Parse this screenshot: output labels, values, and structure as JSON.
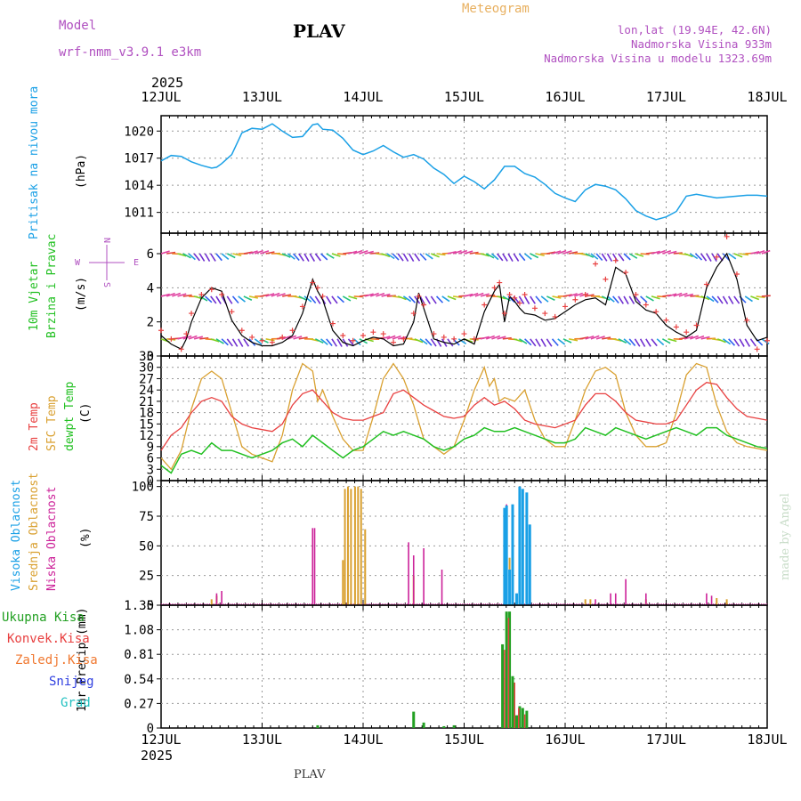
{
  "header": {
    "model_label": "Model",
    "model_name": "wrf-nmm_v3.9.1  e3km",
    "station": "PLAV",
    "product": "Meteogram",
    "lonlat": "lon,lat (19.94E, 42.6N)",
    "elevation": "Nadmorska Visina 933m",
    "elevation_model": "Nadmorska Visina u modelu 1323.69m",
    "credit": "made by Angel",
    "footer_station": "PLAV"
  },
  "colors": {
    "pressure": "#1aa0e6",
    "temp2m": "#e84040",
    "sfc_temp": "#d9a030",
    "dewpt": "#22c022",
    "gust": "#e84040",
    "wind_black": "#000000",
    "cloud_high": "#1aa0e6",
    "cloud_mid": "#d9a030",
    "cloud_low": "#cc2299",
    "precip_total": "#22a022",
    "precip_conv": "#e84040",
    "precip_frz": "#f07830",
    "precip_snow": "#3040e0",
    "precip_hail": "#20c0c0",
    "model_text": "#b050c0",
    "title_orange": "#e8b060"
  },
  "chart_data": [
    {
      "type": "line",
      "title": "Pritisak na nivou mora",
      "ylabel": "(hPa)",
      "x_axis": {
        "year_label": "2025",
        "ticks": [
          "12JUL",
          "13JUL",
          "14JUL",
          "15JUL",
          "16JUL",
          "17JUL",
          "18JUL"
        ],
        "range_days": [
          0,
          6
        ]
      },
      "ylim": [
        1008.7,
        1021.7
      ],
      "yticks": [
        "1011",
        "1014",
        "1017",
        "1020"
      ],
      "series": [
        {
          "name": "pressure",
          "x": [
            0,
            0.1,
            0.2,
            0.3,
            0.4,
            0.5,
            0.55,
            0.6,
            0.7,
            0.8,
            0.9,
            1.0,
            1.1,
            1.2,
            1.3,
            1.4,
            1.5,
            1.55,
            1.6,
            1.7,
            1.8,
            1.9,
            2.0,
            2.1,
            2.2,
            2.3,
            2.4,
            2.5,
            2.6,
            2.7,
            2.8,
            2.9,
            3.0,
            3.1,
            3.2,
            3.3,
            3.4,
            3.5,
            3.6,
            3.7,
            3.8,
            3.9,
            4.0,
            4.1,
            4.2,
            4.3,
            4.4,
            4.5,
            4.6,
            4.7,
            4.8,
            4.9,
            5.0,
            5.1,
            5.2,
            5.3,
            5.4,
            5.5,
            5.6,
            5.7,
            5.8,
            5.9,
            6.0
          ],
          "values": [
            1016.7,
            1017.3,
            1017.2,
            1016.6,
            1016.2,
            1015.9,
            1016.0,
            1016.4,
            1017.4,
            1019.8,
            1020.3,
            1020.2,
            1020.8,
            1020.0,
            1019.3,
            1019.4,
            1020.7,
            1020.8,
            1020.2,
            1020.1,
            1019.2,
            1017.9,
            1017.4,
            1017.8,
            1018.4,
            1017.7,
            1017.1,
            1017.4,
            1016.9,
            1015.9,
            1015.2,
            1014.2,
            1015.0,
            1014.4,
            1013.6,
            1014.6,
            1016.1,
            1016.1,
            1015.3,
            1014.9,
            1014.1,
            1013.1,
            1012.6,
            1012.2,
            1013.5,
            1014.1,
            1013.9,
            1013.5,
            1012.5,
            1011.2,
            1010.6,
            1010.2,
            1010.5,
            1011.1,
            1012.8,
            1013.0,
            1012.8,
            1012.6,
            1012.7,
            1012.8,
            1012.9,
            1012.9,
            1012.8
          ]
        }
      ]
    },
    {
      "type": "line",
      "title": "10m Vjetar Brzina i Pravac",
      "ylabel": "(m/s)",
      "compass": {
        "north": "N",
        "south": "S",
        "west": "W",
        "east": "E"
      },
      "ylim": [
        0,
        7.2
      ],
      "yticks": [
        "0",
        "2",
        "4",
        "6"
      ],
      "series": [
        {
          "name": "wind_speed",
          "x": [
            0,
            0.1,
            0.2,
            0.25,
            0.3,
            0.4,
            0.5,
            0.6,
            0.7,
            0.8,
            0.9,
            1.0,
            1.1,
            1.2,
            1.3,
            1.4,
            1.5,
            1.55,
            1.6,
            1.7,
            1.8,
            1.9,
            2.0,
            2.1,
            2.2,
            2.3,
            2.4,
            2.5,
            2.55,
            2.6,
            2.7,
            2.8,
            2.9,
            3.0,
            3.1,
            3.2,
            3.3,
            3.35,
            3.4,
            3.45,
            3.5,
            3.55,
            3.6,
            3.7,
            3.8,
            3.9,
            4.0,
            4.1,
            4.2,
            4.3,
            4.4,
            4.5,
            4.6,
            4.7,
            4.8,
            4.9,
            5.0,
            5.1,
            5.2,
            5.3,
            5.4,
            5.5,
            5.6,
            5.7,
            5.8,
            5.9,
            6.0
          ],
          "values": [
            1.2,
            0.7,
            0.4,
            1.0,
            2.0,
            3.4,
            4.0,
            3.8,
            2.1,
            1.2,
            0.8,
            0.6,
            0.6,
            0.8,
            1.2,
            2.5,
            4.5,
            3.8,
            3.3,
            1.5,
            0.8,
            0.6,
            0.9,
            1.1,
            1.0,
            0.6,
            0.7,
            2.0,
            3.7,
            2.8,
            1.0,
            0.8,
            0.7,
            1.0,
            0.7,
            2.6,
            3.8,
            4.2,
            2.0,
            3.5,
            3.2,
            2.8,
            2.5,
            2.4,
            2.1,
            2.2,
            2.6,
            3.0,
            3.3,
            3.4,
            3.0,
            5.2,
            4.8,
            3.2,
            2.7,
            2.5,
            1.8,
            1.4,
            1.1,
            1.5,
            4.0,
            5.2,
            6.0,
            4.5,
            1.8,
            0.9,
            1.1
          ]
        },
        {
          "name": "wind_gust",
          "x": [
            0,
            0.1,
            0.2,
            0.25,
            0.3,
            0.4,
            0.5,
            0.6,
            0.7,
            0.8,
            0.9,
            1.0,
            1.1,
            1.2,
            1.3,
            1.4,
            1.5,
            1.55,
            1.6,
            1.7,
            1.8,
            1.9,
            2.0,
            2.1,
            2.2,
            2.3,
            2.4,
            2.5,
            2.55,
            2.6,
            2.7,
            2.8,
            2.9,
            3.0,
            3.1,
            3.2,
            3.3,
            3.35,
            3.4,
            3.45,
            3.5,
            3.55,
            3.6,
            3.7,
            3.8,
            3.9,
            4.0,
            4.1,
            4.2,
            4.3,
            4.4,
            4.5,
            4.6,
            4.7,
            4.8,
            4.9,
            5.0,
            5.1,
            5.2,
            5.3,
            5.4,
            5.5,
            5.6,
            5.7,
            5.8,
            5.9,
            6.0
          ],
          "values": [
            1.5,
            1.0,
            0.4,
            1.3,
            2.5,
            3.6,
            3.9,
            3.6,
            2.6,
            1.5,
            1.1,
            0.9,
            0.8,
            1.1,
            1.5,
            2.9,
            4.3,
            4.0,
            3.5,
            1.9,
            1.2,
            0.9,
            1.2,
            1.4,
            1.3,
            0.8,
            1.0,
            2.5,
            3.5,
            3.0,
            1.3,
            1.1,
            1.0,
            1.3,
            1.0,
            3.0,
            4.0,
            4.3,
            2.5,
            3.6,
            3.4,
            3.1,
            3.6,
            2.8,
            2.5,
            2.3,
            2.9,
            3.3,
            3.6,
            5.4,
            4.5,
            5.6,
            4.9,
            3.6,
            3.0,
            2.6,
            2.1,
            1.7,
            1.4,
            1.8,
            4.2,
            5.8,
            7.0,
            4.8,
            2.1,
            0.4,
            0.9
          ]
        }
      ]
    },
    {
      "type": "line",
      "title": "2m Temp / SFC Temp / dewpt Temp",
      "ylabel": "(C)",
      "ylim": [
        0,
        33
      ],
      "yticks": [
        "0",
        "3",
        "6",
        "9",
        "12",
        "15",
        "18",
        "21",
        "24",
        "27",
        "30",
        "33"
      ],
      "series": [
        {
          "name": "2m Temp",
          "x": [
            0,
            0.1,
            0.2,
            0.3,
            0.4,
            0.5,
            0.6,
            0.7,
            0.8,
            0.9,
            1.0,
            1.1,
            1.2,
            1.3,
            1.4,
            1.5,
            1.6,
            1.7,
            1.8,
            1.9,
            2.0,
            2.1,
            2.2,
            2.3,
            2.4,
            2.5,
            2.6,
            2.7,
            2.8,
            2.9,
            3.0,
            3.1,
            3.2,
            3.3,
            3.4,
            3.5,
            3.6,
            3.7,
            3.8,
            3.9,
            4.0,
            4.1,
            4.2,
            4.3,
            4.4,
            4.5,
            4.6,
            4.7,
            4.8,
            4.9,
            5.0,
            5.1,
            5.2,
            5.3,
            5.4,
            5.5,
            5.6,
            5.7,
            5.8,
            5.9,
            6.0
          ],
          "values": [
            8,
            12,
            14,
            18,
            21,
            22,
            21,
            17,
            15,
            14,
            13.5,
            13,
            15,
            20,
            23,
            24,
            21,
            18,
            16.5,
            16,
            16,
            17,
            18,
            23,
            24,
            22,
            20,
            18.5,
            17,
            16.5,
            17,
            20,
            22,
            20,
            21,
            19,
            16,
            15,
            14.5,
            14,
            15,
            16,
            20,
            23,
            23,
            21,
            18,
            16,
            15.5,
            15,
            15,
            16,
            20,
            24,
            26,
            25.5,
            22,
            19,
            17,
            16.5,
            16
          ]
        },
        {
          "name": "SFC Temp",
          "x": [
            0,
            0.1,
            0.2,
            0.3,
            0.4,
            0.5,
            0.6,
            0.7,
            0.8,
            0.9,
            1.0,
            1.1,
            1.2,
            1.3,
            1.4,
            1.5,
            1.55,
            1.6,
            1.7,
            1.8,
            1.9,
            2.0,
            2.1,
            2.2,
            2.3,
            2.4,
            2.5,
            2.6,
            2.7,
            2.8,
            2.9,
            3.0,
            3.1,
            3.2,
            3.25,
            3.3,
            3.35,
            3.4,
            3.5,
            3.6,
            3.7,
            3.8,
            3.9,
            4.0,
            4.1,
            4.2,
            4.3,
            4.4,
            4.5,
            4.6,
            4.7,
            4.8,
            4.9,
            5.0,
            5.1,
            5.2,
            5.3,
            5.4,
            5.5,
            5.6,
            5.7,
            5.8,
            5.9,
            6.0
          ],
          "values": [
            6,
            3,
            8,
            19,
            27,
            29,
            27,
            18,
            9,
            7,
            6,
            5,
            12,
            24,
            31,
            29,
            21,
            24,
            17,
            11,
            8,
            8,
            17,
            27,
            31,
            27,
            20,
            11,
            9,
            7,
            9,
            16,
            24,
            30,
            25,
            27,
            21,
            22,
            21,
            24,
            16,
            11,
            9,
            9,
            16,
            24,
            29,
            30,
            28,
            18,
            12,
            9,
            9,
            10,
            18,
            28,
            31,
            30,
            20,
            13,
            10,
            9,
            8.5,
            8
          ]
        },
        {
          "name": "dewpt Temp",
          "x": [
            0,
            0.1,
            0.2,
            0.3,
            0.4,
            0.5,
            0.6,
            0.7,
            0.8,
            0.9,
            1.0,
            1.1,
            1.2,
            1.3,
            1.4,
            1.5,
            1.6,
            1.7,
            1.8,
            1.9,
            2.0,
            2.1,
            2.2,
            2.3,
            2.4,
            2.5,
            2.6,
            2.7,
            2.8,
            2.9,
            3.0,
            3.1,
            3.2,
            3.3,
            3.4,
            3.5,
            3.6,
            3.7,
            3.8,
            3.9,
            4.0,
            4.1,
            4.2,
            4.3,
            4.4,
            4.5,
            4.6,
            4.7,
            4.8,
            4.9,
            5.0,
            5.1,
            5.2,
            5.3,
            5.4,
            5.5,
            5.6,
            5.7,
            5.8,
            5.9,
            6.0
          ],
          "values": [
            4,
            2,
            7,
            8,
            7,
            10,
            8,
            8,
            7,
            6,
            7,
            8,
            10,
            11,
            9,
            12,
            10,
            8,
            6,
            8,
            9,
            11,
            13,
            12,
            13,
            12,
            11,
            9,
            8,
            9,
            11,
            12,
            14,
            13,
            13,
            14,
            13,
            12,
            11,
            10,
            10,
            11,
            14,
            13,
            12,
            14,
            13,
            12,
            11,
            12,
            13,
            14,
            13,
            12,
            14,
            14,
            12,
            11,
            10,
            9,
            8.5
          ]
        }
      ]
    },
    {
      "type": "bar",
      "title": "Visoka Oblacnost / Srednja Oblacnost / Niska Oblacnost",
      "ylabel": "(%)",
      "ylim": [
        0,
        105
      ],
      "yticks": [
        "0",
        "25",
        "50",
        "75",
        "100"
      ],
      "series": [
        {
          "name": "Visoka Oblacnost",
          "x": [
            3.4,
            3.42,
            3.45,
            3.48,
            3.52,
            3.55,
            3.58,
            3.62,
            3.65
          ],
          "values": [
            82,
            84,
            30,
            85,
            10,
            100,
            98,
            95,
            68
          ]
        },
        {
          "name": "Srednja Oblacnost",
          "x": [
            0.5,
            0.55,
            1.8,
            1.82,
            1.85,
            1.88,
            1.92,
            1.95,
            1.98,
            2.02,
            2.5,
            3.4,
            3.45,
            4.2,
            4.25,
            4.8,
            5.5,
            5.6
          ],
          "values": [
            5,
            8,
            38,
            98,
            100,
            98,
            100,
            100,
            98,
            64,
            25,
            80,
            40,
            5,
            5,
            5,
            6,
            5
          ]
        },
        {
          "name": "Niska Oblacnost",
          "x": [
            0.55,
            0.6,
            1.5,
            1.52,
            2.45,
            2.5,
            2.6,
            2.78,
            3.42,
            3.48,
            3.55,
            4.3,
            4.45,
            4.5,
            4.6,
            4.8,
            5.4,
            5.45
          ],
          "values": [
            10,
            12,
            65,
            65,
            53,
            42,
            48,
            30,
            85,
            52,
            20,
            5,
            10,
            10,
            22,
            10,
            10,
            8
          ]
        }
      ]
    },
    {
      "type": "bar",
      "title": "1hr Precip",
      "ylabel": "1hr Precip (mm)",
      "legend": [
        "Ukupna Kisa",
        "Konvek.Kisa",
        "Zaledj.Kisa",
        "Snijeg",
        "Grad"
      ],
      "ylim": [
        0,
        1.35
      ],
      "yticks": [
        "0",
        "0.27",
        "0.54",
        "0.81",
        "1.08",
        "1.35"
      ],
      "series": [
        {
          "name": "Ukupna Kisa",
          "x": [
            1.55,
            2.5,
            2.6,
            2.8,
            2.9,
            3.38,
            3.42,
            3.45,
            3.48,
            3.52,
            3.55,
            3.58,
            3.62
          ],
          "values": [
            0.03,
            0.18,
            0.06,
            0.02,
            0.03,
            0.92,
            1.28,
            1.28,
            0.57,
            0.14,
            0.24,
            0.22,
            0.19
          ]
        },
        {
          "name": "Konvek.Kisa",
          "x": [
            3.4,
            3.44,
            3.5,
            3.54,
            3.6
          ],
          "values": [
            0.86,
            1.21,
            0.5,
            0.22,
            0.15
          ]
        }
      ]
    }
  ]
}
